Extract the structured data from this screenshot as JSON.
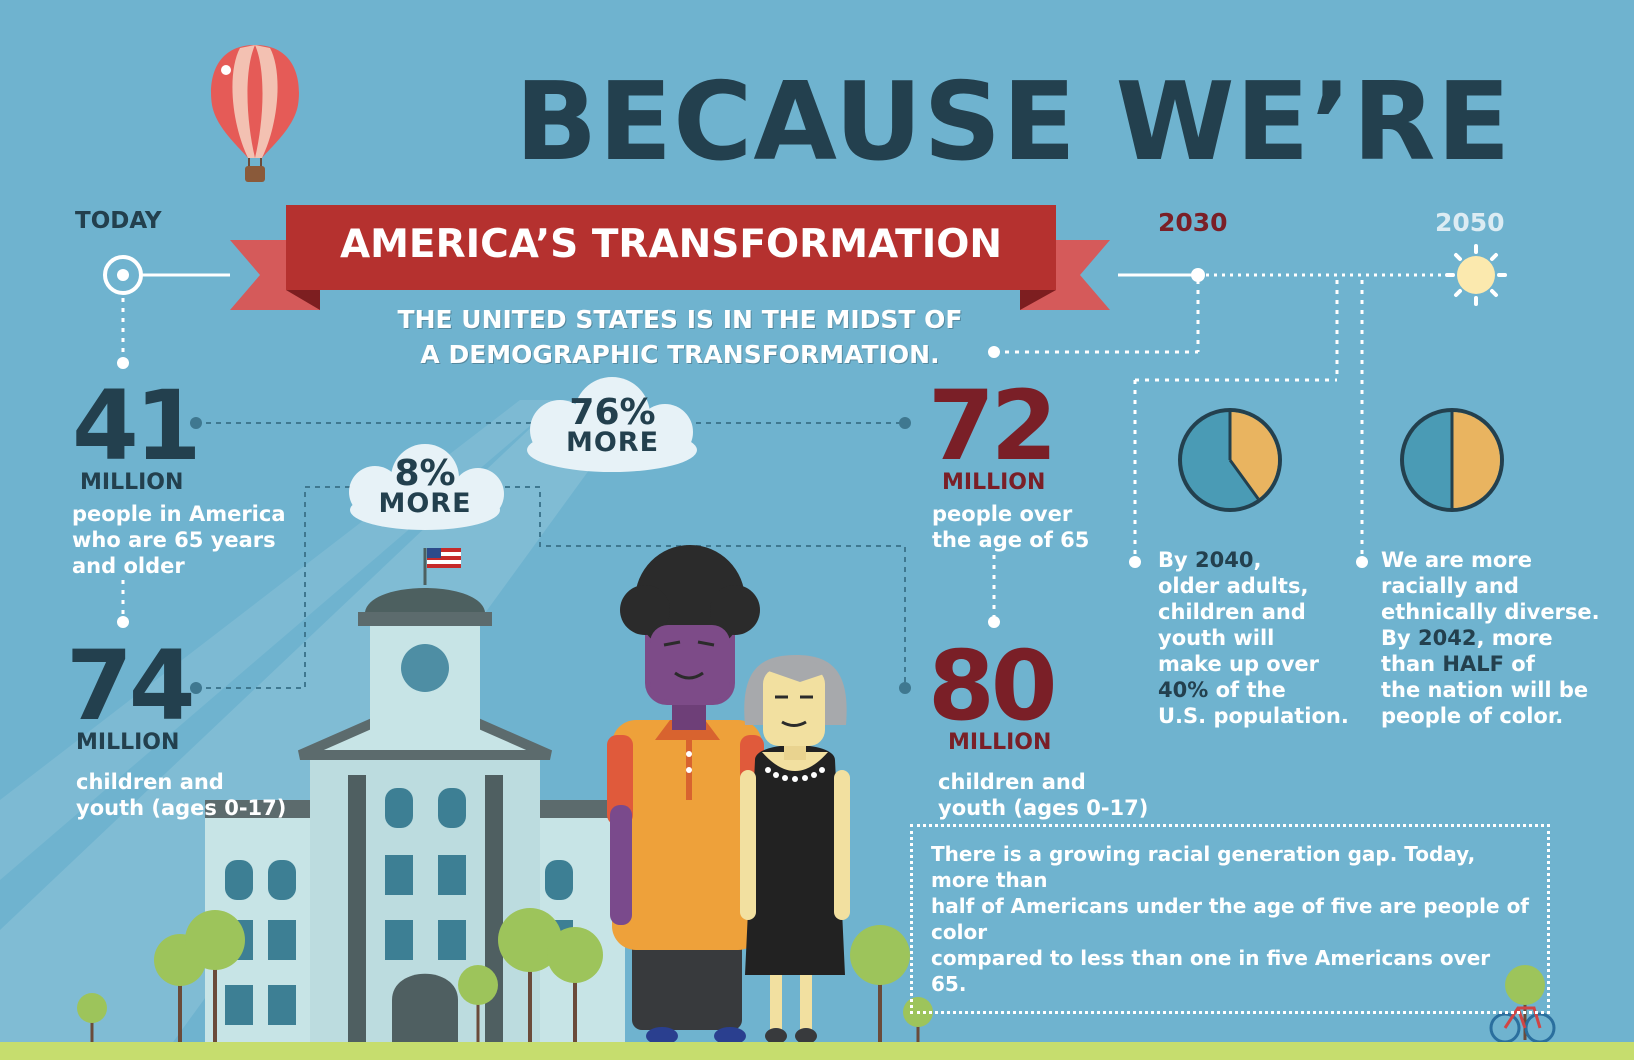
{
  "header": {
    "title": "BECAUSE WE’RE",
    "ribbon": "AMERICA’S TRANSFORMATION",
    "subtitle_line1": "THE UNITED STATES IS IN THE MIDST OF",
    "subtitle_line2": "A DEMOGRAPHIC TRANSFORMATION."
  },
  "timeline": {
    "today": "TODAY",
    "year_2030": "2030",
    "year_2050": "2050"
  },
  "today": {
    "older": {
      "number": "41",
      "unit": "MILLION",
      "line1": "people in America",
      "line2": "who are 65 years",
      "line3": "and older"
    },
    "youth": {
      "number": "74",
      "unit": "MILLION",
      "line1": "children and",
      "line2": "youth (ages 0-17)"
    }
  },
  "future": {
    "older": {
      "number": "72",
      "unit": "MILLION",
      "line1": "people over",
      "line2": "the age of 65"
    },
    "youth": {
      "number": "80",
      "unit": "MILLION",
      "line1": "children and",
      "line2": "youth (ages 0-17)"
    }
  },
  "clouds": {
    "older_growth": {
      "value": "76%",
      "label": "MORE"
    },
    "youth_growth": {
      "value": "8%",
      "label": "MORE"
    }
  },
  "pie_2040": {
    "fraction": 0.4,
    "color_a": "#e9b460",
    "color_b": "#4a9bb5",
    "line1_pre": "By ",
    "line1_hl": "2040",
    "line1_post": ",",
    "line2": "older adults,",
    "line3": "children and",
    "line4": "youth will",
    "line5": "make up over",
    "line6_hl": "40%",
    "line6_post": " of the",
    "line7": "U.S. population."
  },
  "pie_2042": {
    "fraction": 0.5,
    "color_a": "#e9b460",
    "color_b": "#4a9bb5",
    "line1": "We are more",
    "line2": "racially and",
    "line3": "ethnically diverse.",
    "line4_pre": "By ",
    "line4_hl": "2042",
    "line4_post": ", more",
    "line5_pre": "than ",
    "line5_hl": "HALF",
    "line5_post": " of",
    "line6": "the nation will be",
    "line7": "people of color."
  },
  "note": {
    "line1": "There is a growing racial generation gap. Today, more than",
    "line2": "half of Americans under the age of five are people of color",
    "line3": "compared to less than one in five Americans over 65."
  },
  "colors": {
    "background": "#6fb3cf",
    "title": "#23404e",
    "ribbon": "#b5312f",
    "accent_maroon": "#7a1f27",
    "ground": "#c6dd6e"
  },
  "icons": [
    "hot-air-balloon-icon",
    "sun-icon",
    "bicycle-icon",
    "american-flag-icon"
  ]
}
